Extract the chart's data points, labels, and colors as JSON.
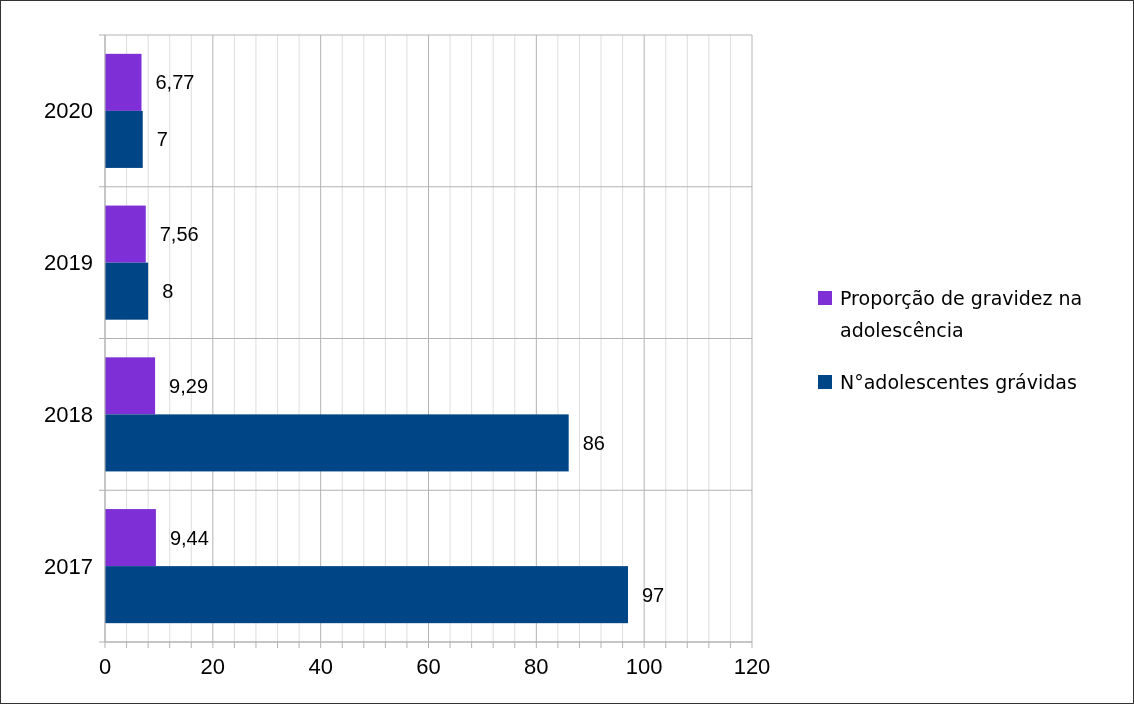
{
  "chart_data": {
    "type": "bar",
    "orientation": "horizontal",
    "categories": [
      "2020",
      "2019",
      "2018",
      "2017"
    ],
    "series": [
      {
        "name": "Proporção de gravidez na adolescência",
        "color": "#7e2fd6",
        "values": [
          6.77,
          7.56,
          9.29,
          9.44
        ],
        "value_labels": [
          "6,77",
          "7,56",
          "9,29",
          "9,44"
        ]
      },
      {
        "name": "N°adolescentes grávidas",
        "color": "#004586",
        "values": [
          7,
          8,
          86,
          97
        ],
        "value_labels": [
          "7",
          "8",
          "86",
          "97"
        ]
      }
    ],
    "xlim": [
      0,
      120
    ],
    "xticks": [
      0,
      {
        "value": 4,
        "label": null
      },
      {
        "value": 8,
        "label": null
      },
      {
        "value": 12,
        "label": null
      },
      {
        "value": 16,
        "label": null
      },
      20,
      {
        "value": 24,
        "label": null
      },
      {
        "value": 28,
        "label": null
      },
      {
        "value": 32,
        "label": null
      },
      {
        "value": 36,
        "label": null
      },
      40,
      {
        "value": 44,
        "label": null
      },
      {
        "value": 48,
        "label": null
      },
      {
        "value": 52,
        "label": null
      },
      {
        "value": 56,
        "label": null
      },
      60,
      {
        "value": 64,
        "label": null
      },
      {
        "value": 68,
        "label": null
      },
      {
        "value": 72,
        "label": null
      },
      {
        "value": 76,
        "label": null
      },
      80,
      {
        "value": 84,
        "label": null
      },
      {
        "value": 88,
        "label": null
      },
      {
        "value": 92,
        "label": null
      },
      {
        "value": 96,
        "label": null
      },
      100,
      {
        "value": 104,
        "label": null
      },
      {
        "value": 108,
        "label": null
      },
      {
        "value": 112,
        "label": null
      },
      {
        "value": 116,
        "label": null
      },
      120
    ],
    "grid": true,
    "legend": "right"
  }
}
